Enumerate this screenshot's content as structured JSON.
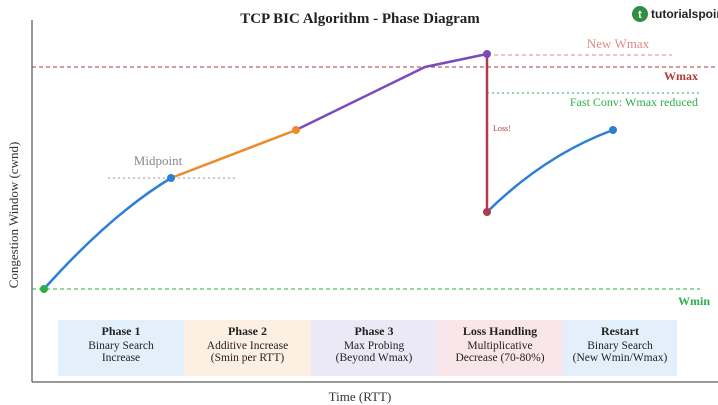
{
  "header": {
    "title": "TCP BIC Algorithm - Phase Diagram",
    "logo": "tutorialspoint"
  },
  "axes": {
    "x_label": "Time (RTT)",
    "y_label": "Congestion Window (cwnd)"
  },
  "annotations": {
    "new_wmax": "New Wmax",
    "wmax": "Wmax",
    "fast_conv": "Fast Conv: Wmax reduced",
    "midpoint": "Midpoint",
    "loss": "Loss!",
    "wmin": "Wmin"
  },
  "phases": [
    {
      "title": "Phase 1",
      "lines": [
        "Binary Search",
        "Increase"
      ]
    },
    {
      "title": "Phase 2",
      "lines": [
        "Additive Increase",
        "(Smin per RTT)"
      ]
    },
    {
      "title": "Phase 3",
      "lines": [
        "Max Probing",
        "(Beyond Wmax)"
      ]
    },
    {
      "title": "Loss Handling",
      "lines": [
        "Multiplicative",
        "Decrease (70-80%)"
      ]
    },
    {
      "title": "Restart",
      "lines": [
        "Binary Search",
        "(New Wmin/Wmax)"
      ]
    }
  ]
}
